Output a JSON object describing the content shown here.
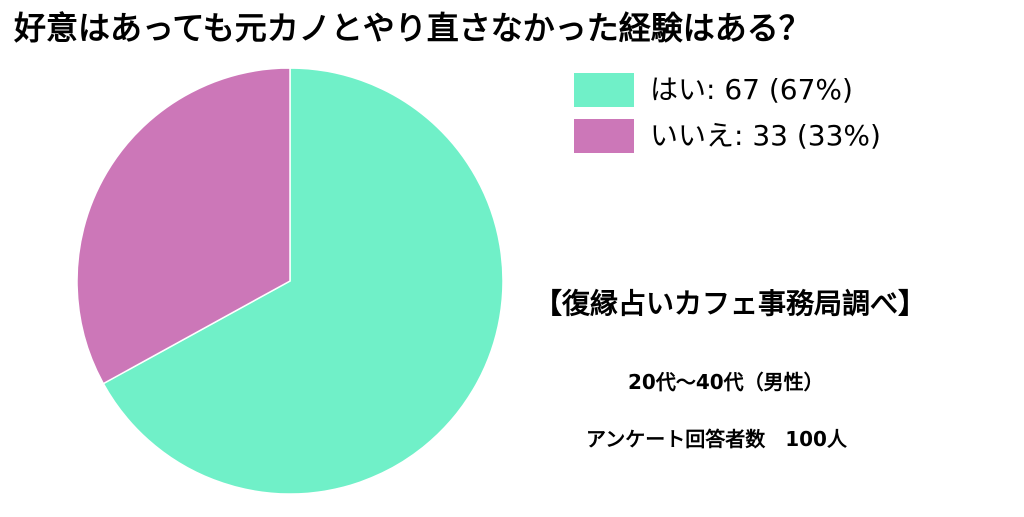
{
  "chart_data": {
    "type": "pie",
    "title": "好意はあっても元カノとやり直さなかった経験はある？",
    "slices": [
      {
        "label": "はい",
        "value": 67,
        "percent": 67,
        "color": "#70F0C8",
        "legend": "はい: 67 (67%)"
      },
      {
        "label": "いいえ",
        "value": 33,
        "percent": 33,
        "color": "#CC77B8",
        "legend": "いいえ: 33 (33%)"
      }
    ],
    "legend_position": "top-right"
  },
  "annotations": {
    "source": "【復縁占いカフェ事務局調べ】",
    "respondents": "20代〜40代（男性）",
    "count": "アンケート回答者数　100人"
  }
}
